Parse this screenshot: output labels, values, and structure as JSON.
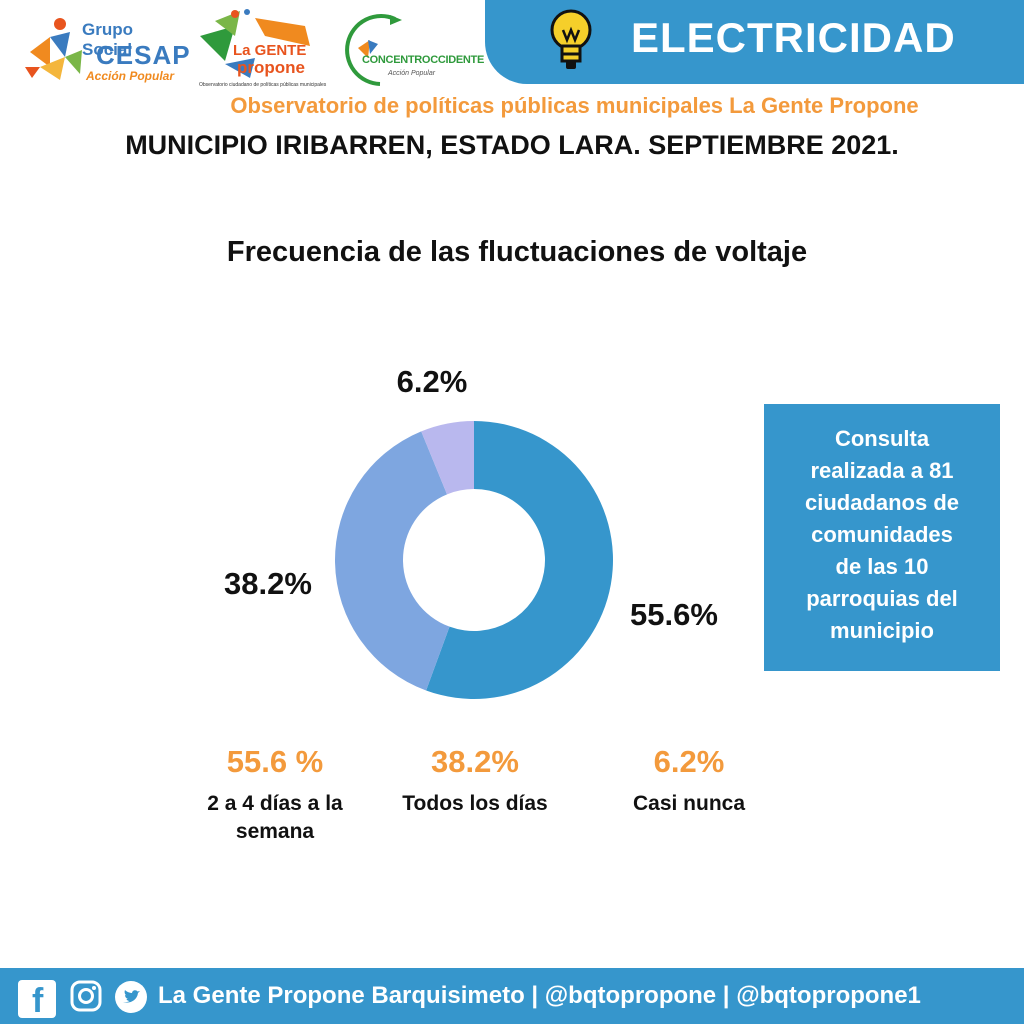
{
  "header": {
    "logos": {
      "cesap": {
        "line1": "Grupo Social",
        "line2": "CESAP",
        "line3": "Acción Popular"
      },
      "lgp": {
        "line1": "La GENTE",
        "line2": "propone",
        "line3": "Observatorio ciudadano de políticas públicas municipales"
      },
      "concentro": {
        "line1": "CONCENTROCCIDENTE",
        "line2": "Acción Popular"
      }
    },
    "banner_title": "ELECTRICIDAD",
    "banner_icon": "lightbulb-icon",
    "observatory": "Observatorio de políticas públicas municipales La Gente Propone",
    "location": "MUNICIPIO IRIBARREN, ESTADO LARA. SEPTIEMBRE 2021."
  },
  "chart_data": {
    "type": "pie",
    "title": "Frecuencia de las fluctuaciones de voltaje",
    "donut": true,
    "slices": [
      {
        "label": "2 a 4 días a la semana",
        "value": 55.6,
        "display": "55.6%",
        "legend_display": "55.6 %",
        "color": "#3696cc"
      },
      {
        "label": "Todos los días",
        "value": 38.2,
        "display": "38.2%",
        "legend_display": "38.2%",
        "color": "#7ea6e0"
      },
      {
        "label": "Casi nunca",
        "value": 6.2,
        "display": "6.2%",
        "legend_display": "6.2%",
        "color": "#b9b8ee"
      }
    ]
  },
  "callout": {
    "lines": [
      "Consulta",
      "realizada a 81",
      "ciudadanos de",
      "comunidades",
      "de las 10",
      "parroquias del",
      "municipio"
    ]
  },
  "footer": {
    "icons": [
      "facebook-icon",
      "instagram-icon",
      "twitter-icon"
    ],
    "text": "La Gente Propone Barquisimeto | @bqtopropone | @bqtopropone1"
  },
  "colors": {
    "primary_blue": "#3696cc",
    "accent_orange": "#f39a3c"
  }
}
